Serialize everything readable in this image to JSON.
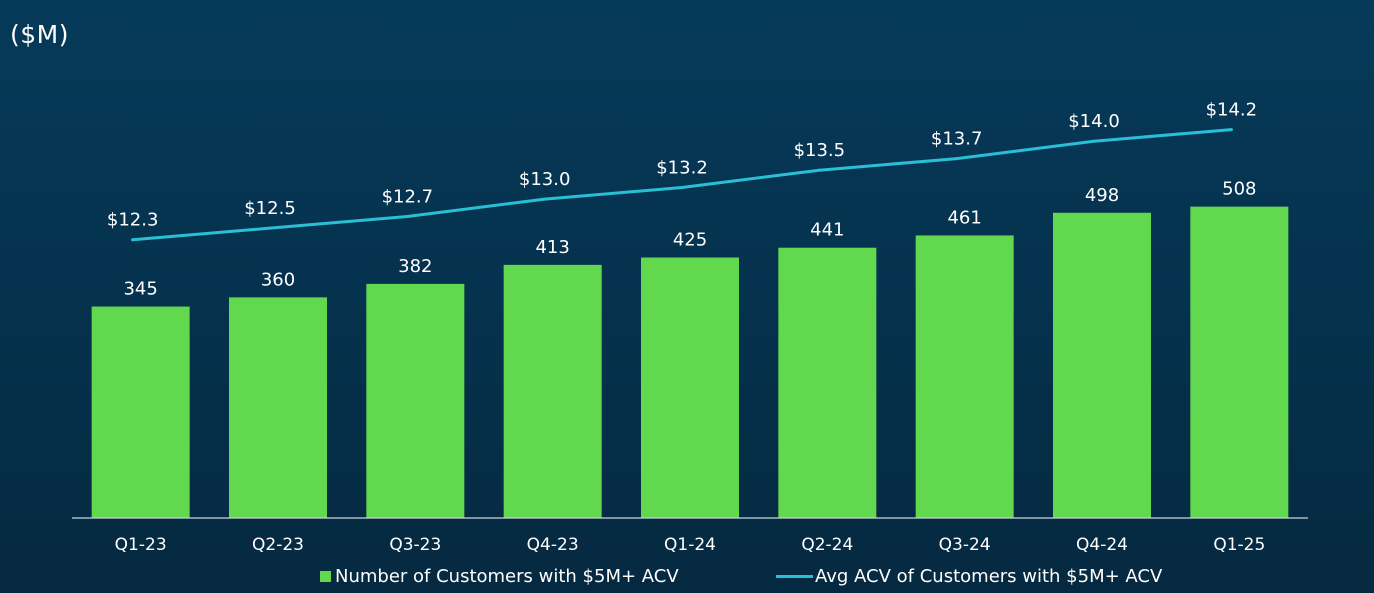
{
  "unit_label": "($M)",
  "chart_data": {
    "type": "bar",
    "categories": [
      "Q1-23",
      "Q2-23",
      "Q3-23",
      "Q4-23",
      "Q1-24",
      "Q2-24",
      "Q3-24",
      "Q4-24",
      "Q1-25"
    ],
    "series": [
      {
        "name": "Number of Customers with $5M+ ACV",
        "type": "bar",
        "values": [
          345,
          360,
          382,
          413,
          425,
          441,
          461,
          498,
          508
        ],
        "labels": [
          "345",
          "360",
          "382",
          "413",
          "425",
          "441",
          "461",
          "498",
          "508"
        ],
        "color": "#62d84e"
      },
      {
        "name": "Avg ACV of Customers with $5M+ ACV",
        "type": "line",
        "values": [
          12.3,
          12.5,
          12.7,
          13.0,
          13.2,
          13.5,
          13.7,
          14.0,
          14.2
        ],
        "labels": [
          "$12.3",
          "$12.5",
          "$12.7",
          "$13.0",
          "$13.2",
          "$13.5",
          "$13.7",
          "$14.0",
          "$14.2"
        ],
        "color": "#29bfd6"
      }
    ],
    "bar_axis_range": [
      0,
      620
    ],
    "line_axis_range": [
      7.5,
      15.4
    ],
    "grid": false,
    "legend_position": "bottom"
  }
}
